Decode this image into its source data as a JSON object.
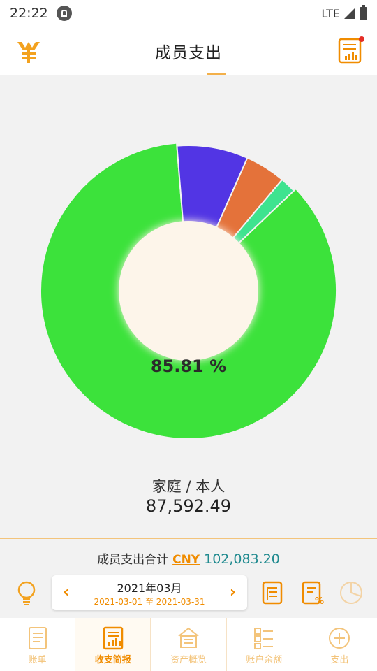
{
  "status": {
    "time": "22:22",
    "network": "LTE"
  },
  "header": {
    "title": "成员支出"
  },
  "chart_data": {
    "type": "pie",
    "labels": [
      "家庭 / 本人",
      "",
      "",
      ""
    ],
    "values": [
      85.81,
      7.92,
      4.51,
      1.76
    ],
    "colors": [
      "#3ce23b",
      "#5235e4",
      "#e4723a",
      "#3ee38f"
    ],
    "center_label": "85.81 %"
  },
  "selected_member": {
    "name": "家庭 / 本人",
    "amount": "87,592.49"
  },
  "total": {
    "label": "成员支出合计",
    "currency": "CNY",
    "amount": "102,083.20"
  },
  "date": {
    "month": "2021年03月",
    "range": "2021-03-01 至 2021-03-31"
  },
  "nav": [
    {
      "label": "账单",
      "icon": "bill-icon"
    },
    {
      "label": "收支简报",
      "icon": "report-icon"
    },
    {
      "label": "资产概览",
      "icon": "assets-icon"
    },
    {
      "label": "账户余额",
      "icon": "account-list-icon"
    },
    {
      "label": "支出",
      "icon": "add-circle-icon"
    }
  ],
  "colors": {
    "accent": "#f08c00",
    "amount_teal": "#1f8a8f"
  }
}
